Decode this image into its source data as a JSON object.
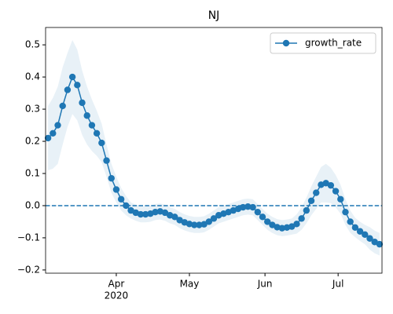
{
  "chart_data": {
    "type": "line",
    "title": "NJ",
    "x": [
      "2020-03-04",
      "2020-03-06",
      "2020-03-08",
      "2020-03-10",
      "2020-03-12",
      "2020-03-14",
      "2020-03-16",
      "2020-03-18",
      "2020-03-20",
      "2020-03-22",
      "2020-03-24",
      "2020-03-26",
      "2020-03-28",
      "2020-03-30",
      "2020-04-01",
      "2020-04-03",
      "2020-04-05",
      "2020-04-07",
      "2020-04-09",
      "2020-04-11",
      "2020-04-13",
      "2020-04-15",
      "2020-04-17",
      "2020-04-19",
      "2020-04-21",
      "2020-04-23",
      "2020-04-25",
      "2020-04-27",
      "2020-04-29",
      "2020-05-01",
      "2020-05-03",
      "2020-05-05",
      "2020-05-07",
      "2020-05-09",
      "2020-05-11",
      "2020-05-13",
      "2020-05-15",
      "2020-05-17",
      "2020-05-19",
      "2020-05-21",
      "2020-05-23",
      "2020-05-25",
      "2020-05-27",
      "2020-05-29",
      "2020-05-31",
      "2020-06-02",
      "2020-06-04",
      "2020-06-06",
      "2020-06-08",
      "2020-06-10",
      "2020-06-12",
      "2020-06-14",
      "2020-06-16",
      "2020-06-18",
      "2020-06-20",
      "2020-06-22",
      "2020-06-24",
      "2020-06-26",
      "2020-06-28",
      "2020-06-30",
      "2020-07-02",
      "2020-07-04",
      "2020-07-06",
      "2020-07-08",
      "2020-07-10",
      "2020-07-12",
      "2020-07-14",
      "2020-07-16",
      "2020-07-18"
    ],
    "series": [
      {
        "name": "growth_rate",
        "color": "#1f77b4",
        "values": [
          0.21,
          0.225,
          0.25,
          0.31,
          0.36,
          0.4,
          0.375,
          0.32,
          0.28,
          0.25,
          0.225,
          0.195,
          0.14,
          0.085,
          0.05,
          0.02,
          0,
          -0.015,
          -0.022,
          -0.027,
          -0.027,
          -0.025,
          -0.02,
          -0.018,
          -0.022,
          -0.03,
          -0.035,
          -0.045,
          -0.052,
          -0.057,
          -0.06,
          -0.06,
          -0.058,
          -0.05,
          -0.04,
          -0.03,
          -0.025,
          -0.02,
          -0.015,
          -0.01,
          -0.005,
          -0.003,
          -0.005,
          -0.02,
          -0.035,
          -0.05,
          -0.06,
          -0.067,
          -0.07,
          -0.068,
          -0.065,
          -0.057,
          -0.04,
          -0.015,
          0.015,
          0.04,
          0.065,
          0.07,
          0.063,
          0.045,
          0.02,
          -0.02,
          -0.05,
          -0.068,
          -0.08,
          -0.09,
          -0.102,
          -0.113,
          -0.12
        ]
      }
    ],
    "band": {
      "color": "#1f77b4",
      "lower": [
        0.11,
        0.115,
        0.13,
        0.19,
        0.245,
        0.285,
        0.265,
        0.22,
        0.19,
        0.17,
        0.155,
        0.135,
        0.09,
        0.04,
        0.01,
        -0.015,
        -0.03,
        -0.04,
        -0.047,
        -0.052,
        -0.052,
        -0.05,
        -0.045,
        -0.043,
        -0.047,
        -0.055,
        -0.06,
        -0.07,
        -0.077,
        -0.082,
        -0.085,
        -0.085,
        -0.083,
        -0.075,
        -0.065,
        -0.055,
        -0.05,
        -0.045,
        -0.04,
        -0.035,
        -0.03,
        -0.028,
        -0.03,
        -0.045,
        -0.06,
        -0.075,
        -0.085,
        -0.092,
        -0.095,
        -0.093,
        -0.09,
        -0.087,
        -0.075,
        -0.055,
        -0.03,
        -0.01,
        0.01,
        0.01,
        0.008,
        -0.005,
        -0.025,
        -0.06,
        -0.085,
        -0.098,
        -0.11,
        -0.12,
        -0.137,
        -0.148,
        -0.155
      ],
      "upper": [
        0.31,
        0.335,
        0.37,
        0.43,
        0.475,
        0.515,
        0.485,
        0.42,
        0.37,
        0.33,
        0.295,
        0.255,
        0.19,
        0.13,
        0.09,
        0.055,
        0.03,
        0.01,
        0.003,
        -0.002,
        -0.002,
        0,
        0.005,
        0.007,
        0.003,
        -0.005,
        -0.01,
        -0.02,
        -0.027,
        -0.032,
        -0.035,
        -0.035,
        -0.033,
        -0.025,
        -0.015,
        -0.005,
        0,
        0.005,
        0.01,
        0.015,
        0.02,
        0.022,
        0.02,
        0.005,
        -0.01,
        -0.025,
        -0.035,
        -0.042,
        -0.045,
        -0.043,
        -0.04,
        -0.027,
        -0.005,
        0.025,
        0.06,
        0.09,
        0.12,
        0.13,
        0.118,
        0.095,
        0.065,
        0.02,
        -0.015,
        -0.038,
        -0.05,
        -0.06,
        -0.067,
        -0.078,
        -0.085
      ]
    },
    "hline": {
      "value": 0,
      "color": "#1f77b4"
    },
    "xlim": [
      "2020-03-03",
      "2020-07-19"
    ],
    "xticks": [
      {
        "value": "2020-04-01",
        "label": "Apr"
      },
      {
        "value": "2020-05-01",
        "label": "May"
      },
      {
        "value": "2020-06-01",
        "label": "Jun"
      },
      {
        "value": "2020-07-01",
        "label": "Jul"
      }
    ],
    "x_year_label": "2020",
    "ylim": [
      -0.21,
      0.554
    ],
    "yticks": [
      {
        "value": -0.2,
        "label": "−0.2"
      },
      {
        "value": -0.1,
        "label": "−0.1"
      },
      {
        "value": 0,
        "label": "0.0"
      },
      0.1,
      0.2,
      0.3,
      0.4,
      0.5
    ],
    "legend": "upper right"
  }
}
